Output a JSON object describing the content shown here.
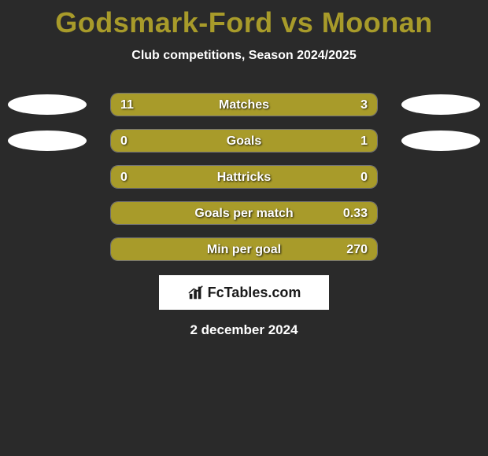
{
  "title": "Godsmark-Ford vs Moonan",
  "title_color": "#a89b2a",
  "subtitle": "Club competitions, Season 2024/2025",
  "background_color": "#2a2a2a",
  "bar_border_color": "rgba(255,255,255,0.35)",
  "fill_color": "#a89b2a",
  "ellipse_color": "#ffffff",
  "text_color": "#ffffff",
  "logo_text": "FcTables.com",
  "date_text": "2 december 2024",
  "rows": [
    {
      "label": "Matches",
      "left_val": "11",
      "right_val": "3",
      "left_pct": 78,
      "right_pct": 22,
      "show_left_ellipse": true,
      "show_right_ellipse": true
    },
    {
      "label": "Goals",
      "left_val": "0",
      "right_val": "1",
      "left_pct": 18,
      "right_pct": 82,
      "show_left_ellipse": true,
      "show_right_ellipse": true
    },
    {
      "label": "Hattricks",
      "left_val": "0",
      "right_val": "0",
      "left_pct": 100,
      "right_pct": 0,
      "show_left_ellipse": false,
      "show_right_ellipse": false
    },
    {
      "label": "Goals per match",
      "left_val": "",
      "right_val": "0.33",
      "left_pct": 16,
      "right_pct": 84,
      "show_left_ellipse": false,
      "show_right_ellipse": false
    },
    {
      "label": "Min per goal",
      "left_val": "",
      "right_val": "270",
      "left_pct": 13,
      "right_pct": 87,
      "show_left_ellipse": false,
      "show_right_ellipse": false
    }
  ]
}
